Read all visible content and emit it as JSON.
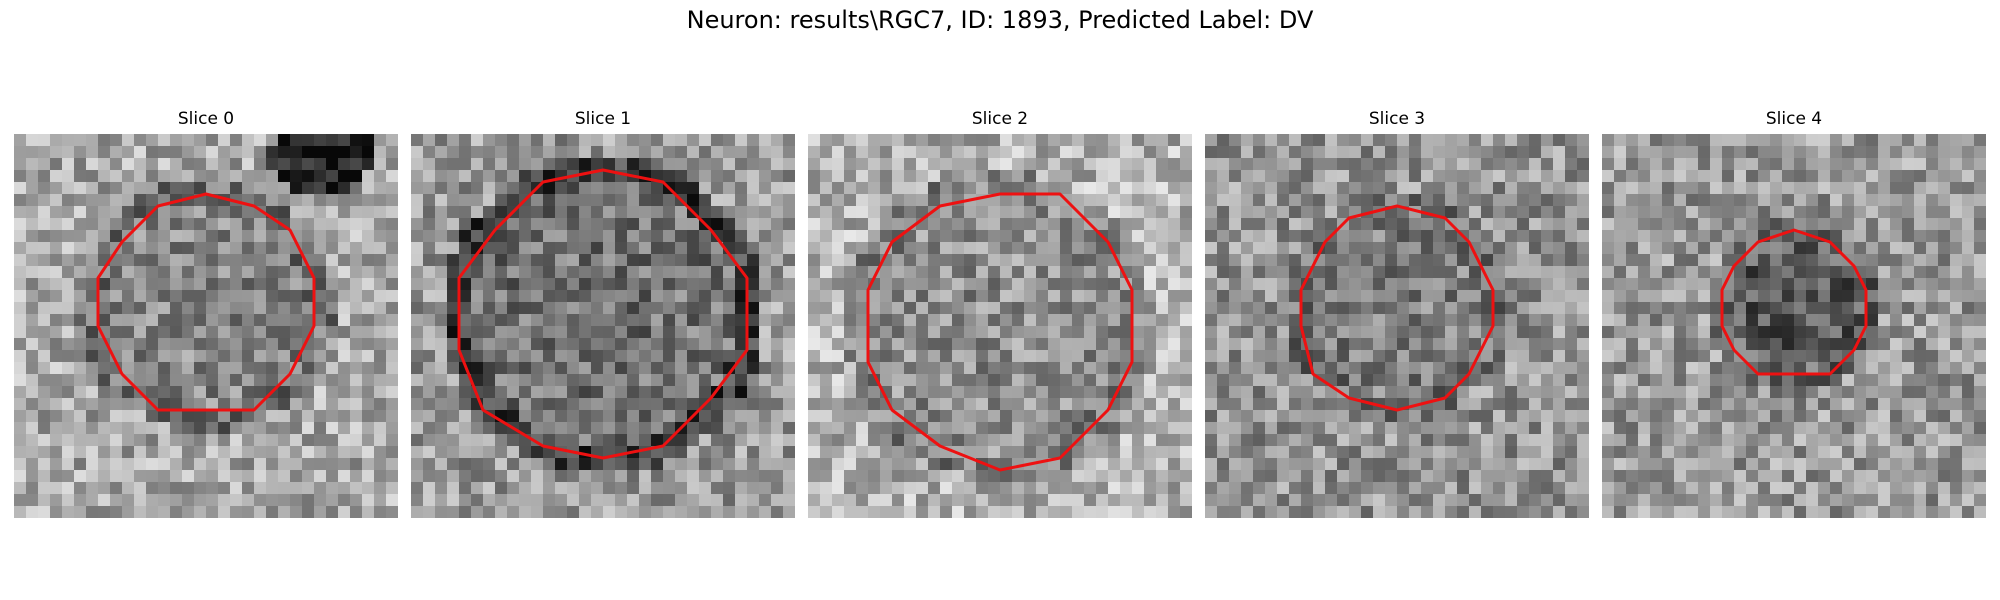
{
  "figure": {
    "suptitle": "Neuron: results\\RGC7, ID: 1893, Predicted Label: DV",
    "contour_color": "#ee1111",
    "colormap": "gray"
  },
  "slices": [
    {
      "title": "Slice 0"
    },
    {
      "title": "Slice 1"
    },
    {
      "title": "Slice 2"
    },
    {
      "title": "Slice 3"
    },
    {
      "title": "Slice 4"
    }
  ]
}
